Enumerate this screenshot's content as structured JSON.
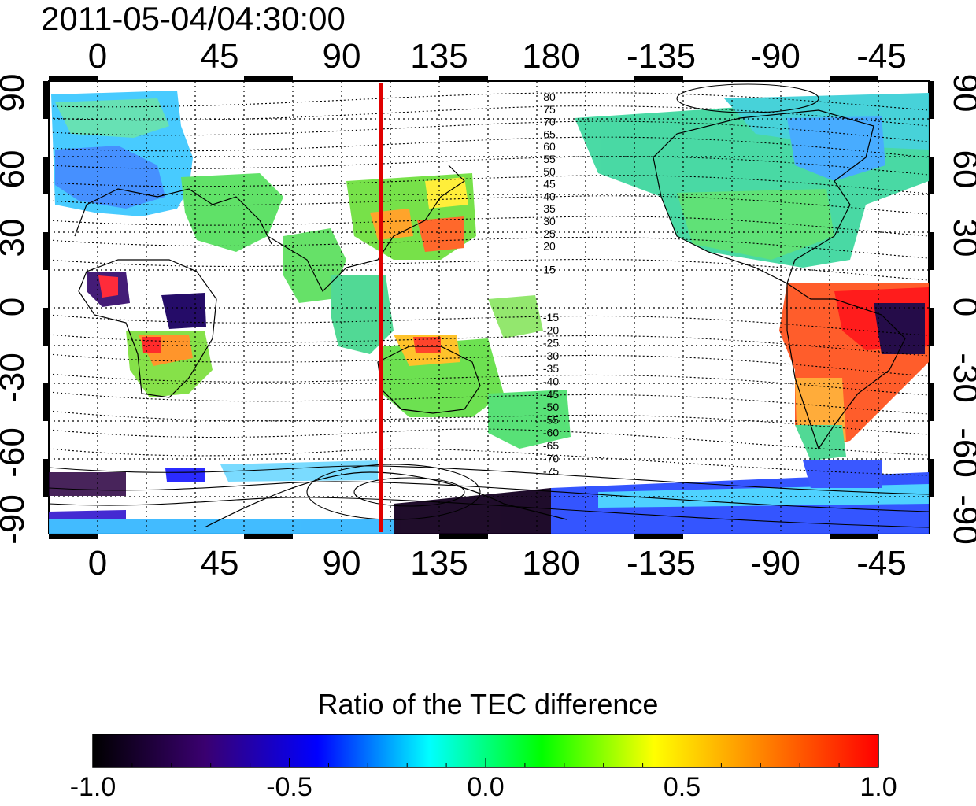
{
  "timestamp": "2011-05-04/04:30:00",
  "map": {
    "projection": "equirectangular",
    "top_lon_labels": [
      "0",
      "45",
      "90",
      "135",
      "180",
      "-135",
      "-90",
      "-45"
    ],
    "bottom_lon_labels": [
      "0",
      "45",
      "90",
      "135",
      "180",
      "-135",
      "-90",
      "-45"
    ],
    "left_lat_labels": [
      "90",
      "60",
      "30",
      "0",
      "-30",
      "-60",
      "-90"
    ],
    "right_lat_labels": [
      "90",
      "60",
      "30",
      "0",
      "-30",
      "-60",
      "-90"
    ],
    "contour_labels_north": [
      "80",
      "75",
      "70",
      "65",
      "60",
      "55",
      "50",
      "45",
      "40",
      "35",
      "30",
      "25",
      "20",
      "15"
    ],
    "contour_labels_south": [
      "-15",
      "-20",
      "-25",
      "-30",
      "-35",
      "-40",
      "-45",
      "-50",
      "-55",
      "-60",
      "-65",
      "-70",
      "-75"
    ],
    "marker_line_color": "#e00000",
    "marker_line_lon": 113
  },
  "colorbar": {
    "title": "Ratio of the TEC difference",
    "tick_labels": [
      "-1.0",
      "-0.5",
      "0.0",
      "0.5",
      "1.0"
    ],
    "range": [
      -1.0,
      1.0
    ],
    "colormap": [
      "#000000",
      "#3a0070",
      "#0000ff",
      "#00ffff",
      "#00ff00",
      "#ffff00",
      "#ff7f00",
      "#ff0000"
    ]
  }
}
